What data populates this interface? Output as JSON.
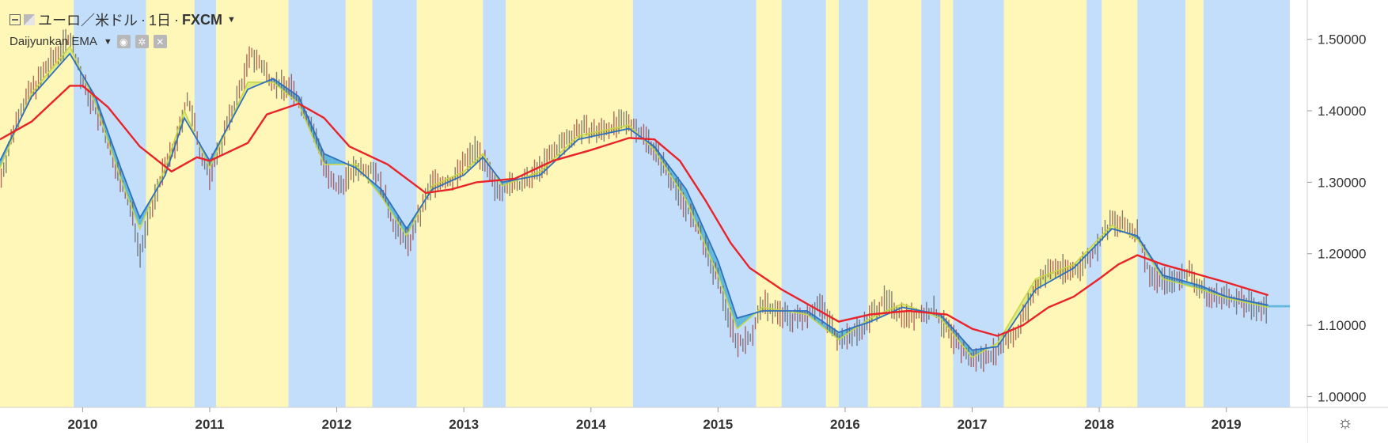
{
  "header": {
    "symbol": "ユーロ／米ドル",
    "interval": "1日",
    "exchange": "FXCM",
    "sep": "·",
    "indicator": "Daijyunkan EMA"
  },
  "settings_icon": "sun-gear-icon",
  "chart_data": {
    "type": "line",
    "title": "",
    "ylim": [
      0.985,
      1.555
    ],
    "y_ticks": [
      1.5,
      1.4,
      1.3,
      1.2,
      1.1,
      1.0
    ],
    "y_tick_labels": [
      "1.50000",
      "1.40000",
      "1.30000",
      "1.20000",
      "1.10000",
      "1.00000"
    ],
    "xlim": [
      2009.35,
      2019.5
    ],
    "x_ticks": [
      2010,
      2011,
      2012,
      2013,
      2014,
      2015,
      2016,
      2017,
      2018,
      2019
    ],
    "x_tick_labels": [
      "2010",
      "2011",
      "2012",
      "2013",
      "2014",
      "2015",
      "2016",
      "2017",
      "2018",
      "2019"
    ],
    "colors": {
      "bull_band": "#fff7b7",
      "bear_band": "#c3defa",
      "long_ema": "#e8232a",
      "mid_ema": "#2f6fc0",
      "short_ema": "#c7d64a",
      "fill_bear": "#4fb3d6",
      "fill_bull": "#d9e87a",
      "candle": "#5a5a5a"
    },
    "series": [
      {
        "role": "price",
        "points": [
          [
            2009.35,
            1.3
          ],
          [
            2009.5,
            1.4
          ],
          [
            2009.7,
            1.455
          ],
          [
            2009.9,
            1.505
          ],
          [
            2010.0,
            1.44
          ],
          [
            2010.15,
            1.38
          ],
          [
            2010.3,
            1.3
          ],
          [
            2010.4,
            1.25
          ],
          [
            2010.45,
            1.2
          ],
          [
            2010.6,
            1.3
          ],
          [
            2010.75,
            1.36
          ],
          [
            2010.82,
            1.42
          ],
          [
            2010.95,
            1.33
          ],
          [
            2011.0,
            1.31
          ],
          [
            2011.2,
            1.41
          ],
          [
            2011.33,
            1.48
          ],
          [
            2011.5,
            1.44
          ],
          [
            2011.65,
            1.43
          ],
          [
            2011.8,
            1.38
          ],
          [
            2011.95,
            1.3
          ],
          [
            2012.0,
            1.29
          ],
          [
            2012.15,
            1.32
          ],
          [
            2012.3,
            1.32
          ],
          [
            2012.45,
            1.24
          ],
          [
            2012.57,
            1.215
          ],
          [
            2012.75,
            1.3
          ],
          [
            2012.9,
            1.3
          ],
          [
            2013.1,
            1.35
          ],
          [
            2013.25,
            1.29
          ],
          [
            2013.5,
            1.3
          ],
          [
            2013.75,
            1.35
          ],
          [
            2013.9,
            1.375
          ],
          [
            2014.05,
            1.37
          ],
          [
            2014.3,
            1.385
          ],
          [
            2014.45,
            1.36
          ],
          [
            2014.65,
            1.3
          ],
          [
            2014.85,
            1.23
          ],
          [
            2015.0,
            1.16
          ],
          [
            2015.15,
            1.075
          ],
          [
            2015.25,
            1.08
          ],
          [
            2015.35,
            1.13
          ],
          [
            2015.55,
            1.11
          ],
          [
            2015.65,
            1.11
          ],
          [
            2015.8,
            1.13
          ],
          [
            2015.95,
            1.08
          ],
          [
            2016.0,
            1.08
          ],
          [
            2016.15,
            1.1
          ],
          [
            2016.3,
            1.135
          ],
          [
            2016.5,
            1.11
          ],
          [
            2016.7,
            1.12
          ],
          [
            2016.85,
            1.08
          ],
          [
            2017.0,
            1.05
          ],
          [
            2017.15,
            1.06
          ],
          [
            2017.35,
            1.09
          ],
          [
            2017.55,
            1.17
          ],
          [
            2017.65,
            1.18
          ],
          [
            2017.8,
            1.175
          ],
          [
            2017.95,
            1.2
          ],
          [
            2018.05,
            1.23
          ],
          [
            2018.1,
            1.245
          ],
          [
            2018.3,
            1.23
          ],
          [
            2018.4,
            1.17
          ],
          [
            2018.55,
            1.16
          ],
          [
            2018.7,
            1.175
          ],
          [
            2018.85,
            1.14
          ],
          [
            2019.0,
            1.14
          ],
          [
            2019.15,
            1.13
          ],
          [
            2019.33,
            1.12
          ]
        ]
      },
      {
        "role": "long_ema",
        "points": [
          [
            2009.35,
            1.36
          ],
          [
            2009.6,
            1.385
          ],
          [
            2009.9,
            1.435
          ],
          [
            2010.0,
            1.435
          ],
          [
            2010.2,
            1.405
          ],
          [
            2010.45,
            1.35
          ],
          [
            2010.7,
            1.315
          ],
          [
            2010.9,
            1.335
          ],
          [
            2011.0,
            1.33
          ],
          [
            2011.3,
            1.355
          ],
          [
            2011.45,
            1.395
          ],
          [
            2011.7,
            1.41
          ],
          [
            2011.9,
            1.39
          ],
          [
            2012.1,
            1.35
          ],
          [
            2012.4,
            1.325
          ],
          [
            2012.7,
            1.285
          ],
          [
            2012.9,
            1.29
          ],
          [
            2013.1,
            1.3
          ],
          [
            2013.4,
            1.305
          ],
          [
            2013.7,
            1.33
          ],
          [
            2014.0,
            1.345
          ],
          [
            2014.3,
            1.362
          ],
          [
            2014.5,
            1.36
          ],
          [
            2014.7,
            1.33
          ],
          [
            2014.9,
            1.275
          ],
          [
            2015.1,
            1.215
          ],
          [
            2015.25,
            1.18
          ],
          [
            2015.5,
            1.15
          ],
          [
            2015.75,
            1.125
          ],
          [
            2015.95,
            1.105
          ],
          [
            2016.2,
            1.115
          ],
          [
            2016.5,
            1.12
          ],
          [
            2016.8,
            1.115
          ],
          [
            2017.0,
            1.095
          ],
          [
            2017.2,
            1.085
          ],
          [
            2017.4,
            1.1
          ],
          [
            2017.6,
            1.125
          ],
          [
            2017.8,
            1.14
          ],
          [
            2018.0,
            1.165
          ],
          [
            2018.15,
            1.185
          ],
          [
            2018.3,
            1.198
          ],
          [
            2018.5,
            1.185
          ],
          [
            2018.8,
            1.17
          ],
          [
            2019.0,
            1.16
          ],
          [
            2019.33,
            1.142
          ]
        ]
      },
      {
        "role": "mid_ema",
        "points": [
          [
            2009.35,
            1.33
          ],
          [
            2009.6,
            1.42
          ],
          [
            2009.9,
            1.48
          ],
          [
            2010.1,
            1.42
          ],
          [
            2010.3,
            1.32
          ],
          [
            2010.45,
            1.25
          ],
          [
            2010.65,
            1.31
          ],
          [
            2010.8,
            1.39
          ],
          [
            2011.0,
            1.33
          ],
          [
            2011.3,
            1.43
          ],
          [
            2011.5,
            1.445
          ],
          [
            2011.7,
            1.42
          ],
          [
            2011.9,
            1.34
          ],
          [
            2012.15,
            1.32
          ],
          [
            2012.35,
            1.29
          ],
          [
            2012.55,
            1.235
          ],
          [
            2012.75,
            1.29
          ],
          [
            2013.0,
            1.31
          ],
          [
            2013.15,
            1.335
          ],
          [
            2013.3,
            1.3
          ],
          [
            2013.6,
            1.31
          ],
          [
            2013.9,
            1.36
          ],
          [
            2014.3,
            1.375
          ],
          [
            2014.5,
            1.35
          ],
          [
            2014.75,
            1.29
          ],
          [
            2015.0,
            1.19
          ],
          [
            2015.15,
            1.11
          ],
          [
            2015.35,
            1.12
          ],
          [
            2015.7,
            1.12
          ],
          [
            2015.95,
            1.09
          ],
          [
            2016.2,
            1.105
          ],
          [
            2016.45,
            1.125
          ],
          [
            2016.75,
            1.115
          ],
          [
            2017.0,
            1.065
          ],
          [
            2017.2,
            1.07
          ],
          [
            2017.5,
            1.15
          ],
          [
            2017.8,
            1.18
          ],
          [
            2018.1,
            1.235
          ],
          [
            2018.3,
            1.225
          ],
          [
            2018.5,
            1.17
          ],
          [
            2018.8,
            1.155
          ],
          [
            2019.0,
            1.14
          ],
          [
            2019.33,
            1.128
          ]
        ]
      },
      {
        "role": "short_ema",
        "points": [
          [
            2009.35,
            1.32
          ],
          [
            2009.6,
            1.425
          ],
          [
            2009.9,
            1.49
          ],
          [
            2010.1,
            1.41
          ],
          [
            2010.3,
            1.305
          ],
          [
            2010.45,
            1.235
          ],
          [
            2010.65,
            1.32
          ],
          [
            2010.8,
            1.4
          ],
          [
            2011.0,
            1.32
          ],
          [
            2011.3,
            1.44
          ],
          [
            2011.5,
            1.44
          ],
          [
            2011.7,
            1.41
          ],
          [
            2011.9,
            1.325
          ],
          [
            2012.15,
            1.325
          ],
          [
            2012.35,
            1.28
          ],
          [
            2012.55,
            1.225
          ],
          [
            2012.75,
            1.295
          ],
          [
            2013.0,
            1.315
          ],
          [
            2013.15,
            1.34
          ],
          [
            2013.3,
            1.295
          ],
          [
            2013.6,
            1.315
          ],
          [
            2013.9,
            1.365
          ],
          [
            2014.3,
            1.38
          ],
          [
            2014.5,
            1.345
          ],
          [
            2014.75,
            1.275
          ],
          [
            2015.0,
            1.17
          ],
          [
            2015.15,
            1.095
          ],
          [
            2015.35,
            1.125
          ],
          [
            2015.7,
            1.115
          ],
          [
            2015.95,
            1.08
          ],
          [
            2016.2,
            1.11
          ],
          [
            2016.45,
            1.13
          ],
          [
            2016.75,
            1.11
          ],
          [
            2017.0,
            1.055
          ],
          [
            2017.2,
            1.075
          ],
          [
            2017.5,
            1.165
          ],
          [
            2017.8,
            1.185
          ],
          [
            2018.1,
            1.24
          ],
          [
            2018.3,
            1.22
          ],
          [
            2018.5,
            1.165
          ],
          [
            2018.8,
            1.15
          ],
          [
            2019.0,
            1.138
          ],
          [
            2019.33,
            1.125
          ]
        ]
      }
    ],
    "regimes": [
      [
        "bull",
        2009.35,
        2009.93
      ],
      [
        "bear",
        2009.93,
        2010.5
      ],
      [
        "bull",
        2010.5,
        2010.88
      ],
      [
        "bear",
        2010.88,
        2011.05
      ],
      [
        "bull",
        2011.05,
        2011.33
      ],
      [
        "bull",
        2011.33,
        2011.62
      ],
      [
        "bear",
        2011.62,
        2012.07
      ],
      [
        "bull",
        2012.07,
        2012.28
      ],
      [
        "bear",
        2012.28,
        2012.63
      ],
      [
        "bull",
        2012.63,
        2013.15
      ],
      [
        "bear",
        2013.15,
        2013.33
      ],
      [
        "bull",
        2013.33,
        2014.33
      ],
      [
        "bear",
        2014.33,
        2015.3
      ],
      [
        "bull",
        2015.3,
        2015.5
      ],
      [
        "bear",
        2015.5,
        2015.85
      ],
      [
        "bull",
        2015.85,
        2015.95
      ],
      [
        "bear",
        2015.95,
        2016.18
      ],
      [
        "bull",
        2016.18,
        2016.6
      ],
      [
        "bear",
        2016.6,
        2016.75
      ],
      [
        "bull",
        2016.75,
        2016.85
      ],
      [
        "bear",
        2016.85,
        2017.25
      ],
      [
        "bull",
        2017.25,
        2017.9
      ],
      [
        "bear",
        2017.9,
        2018.02
      ],
      [
        "bull",
        2018.02,
        2018.3
      ],
      [
        "bear",
        2018.3,
        2018.68
      ],
      [
        "bull",
        2018.68,
        2018.82
      ],
      [
        "bear",
        2018.82,
        2019.5
      ]
    ],
    "grid": false
  }
}
